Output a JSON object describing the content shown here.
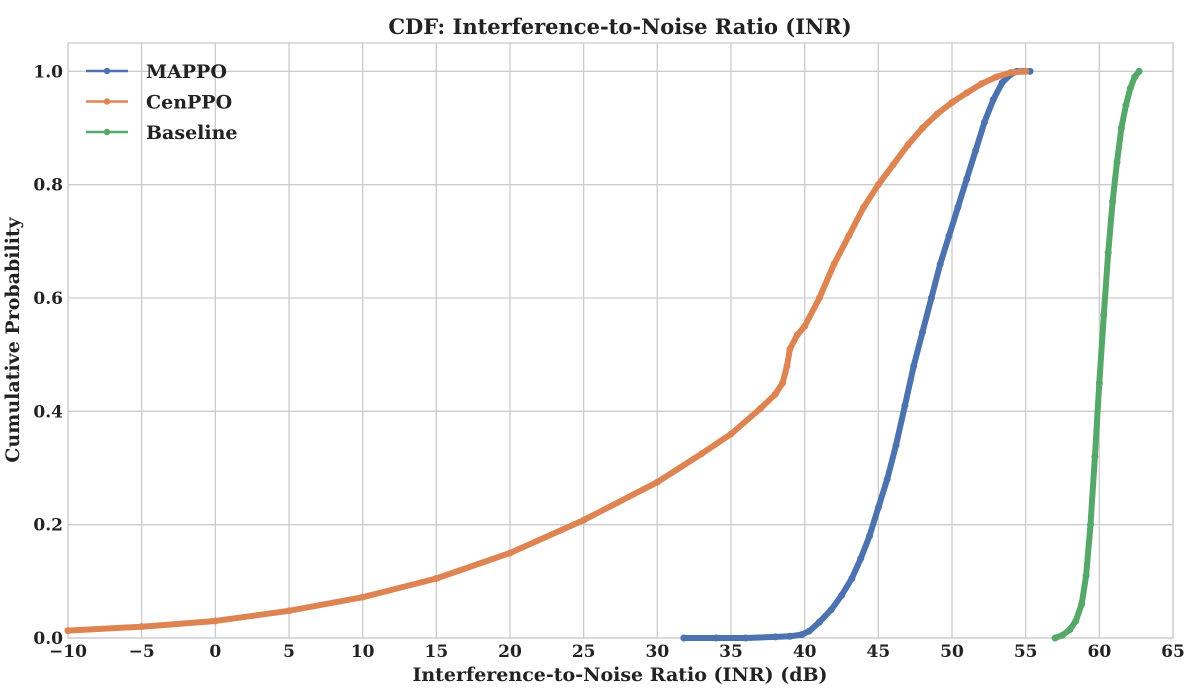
{
  "chart_data": {
    "type": "line",
    "title": "CDF: Interference-to-Noise Ratio (INR)",
    "xlabel": "Interference-to-Noise Ratio (INR) (dB)",
    "ylabel": "Cumulative Probability",
    "xlim": [
      -10,
      65
    ],
    "ylim": [
      0,
      1.05
    ],
    "xticks": [
      -10,
      -5,
      0,
      5,
      10,
      15,
      20,
      25,
      30,
      35,
      40,
      45,
      50,
      55,
      60,
      65
    ],
    "xtick_labels": [
      "−10",
      "−5",
      "0",
      "5",
      "10",
      "15",
      "20",
      "25",
      "30",
      "35",
      "40",
      "45",
      "50",
      "55",
      "60",
      "65"
    ],
    "yticks": [
      0,
      0.2,
      0.4,
      0.6,
      0.8,
      1.0
    ],
    "ytick_labels": [
      "0.0",
      "0.2",
      "0.4",
      "0.6",
      "0.8",
      "1.0"
    ],
    "grid": true,
    "legend_position": "top-left",
    "series": [
      {
        "name": "MAPPO",
        "color": "#4c72b0",
        "x": [
          31.8,
          34.0,
          36.0,
          38.0,
          39.0,
          39.8,
          40.3,
          41.0,
          41.8,
          42.5,
          43.2,
          43.8,
          44.4,
          45.0,
          45.6,
          46.2,
          46.8,
          47.4,
          48.0,
          48.6,
          49.2,
          49.8,
          50.4,
          51.0,
          51.6,
          52.2,
          52.8,
          53.4,
          54.0,
          54.4,
          54.8,
          55.3
        ],
        "y": [
          0.0,
          0.0,
          0.0,
          0.002,
          0.003,
          0.006,
          0.012,
          0.028,
          0.05,
          0.075,
          0.105,
          0.14,
          0.18,
          0.23,
          0.28,
          0.34,
          0.41,
          0.48,
          0.54,
          0.6,
          0.66,
          0.71,
          0.76,
          0.81,
          0.86,
          0.91,
          0.95,
          0.98,
          0.995,
          1.0,
          1.0,
          1.0
        ]
      },
      {
        "name": "CenPPO",
        "color": "#dd8452",
        "x": [
          -10.0,
          -5.0,
          0.0,
          5.0,
          10.0,
          15.0,
          20.0,
          25.0,
          30.0,
          33.0,
          35.0,
          37.0,
          38.0,
          38.5,
          38.8,
          39.0,
          39.5,
          40.0,
          41.0,
          42.0,
          43.0,
          44.0,
          45.0,
          46.0,
          47.0,
          48.0,
          49.0,
          50.0,
          51.0,
          52.0,
          53.0,
          54.0,
          55.0
        ],
        "y": [
          0.013,
          0.02,
          0.03,
          0.048,
          0.072,
          0.105,
          0.15,
          0.208,
          0.275,
          0.325,
          0.36,
          0.405,
          0.43,
          0.45,
          0.48,
          0.51,
          0.535,
          0.55,
          0.6,
          0.66,
          0.71,
          0.76,
          0.8,
          0.835,
          0.87,
          0.9,
          0.925,
          0.945,
          0.962,
          0.978,
          0.99,
          0.998,
          1.0
        ]
      },
      {
        "name": "Baseline",
        "color": "#55a868",
        "x": [
          57.0,
          57.5,
          58.0,
          58.4,
          58.8,
          59.1,
          59.4,
          59.7,
          60.0,
          60.3,
          60.6,
          60.9,
          61.2,
          61.5,
          61.8,
          62.1,
          62.4,
          62.7
        ],
        "y": [
          0.0,
          0.005,
          0.015,
          0.03,
          0.06,
          0.11,
          0.2,
          0.32,
          0.45,
          0.57,
          0.68,
          0.77,
          0.84,
          0.9,
          0.94,
          0.97,
          0.99,
          1.0
        ]
      }
    ]
  }
}
